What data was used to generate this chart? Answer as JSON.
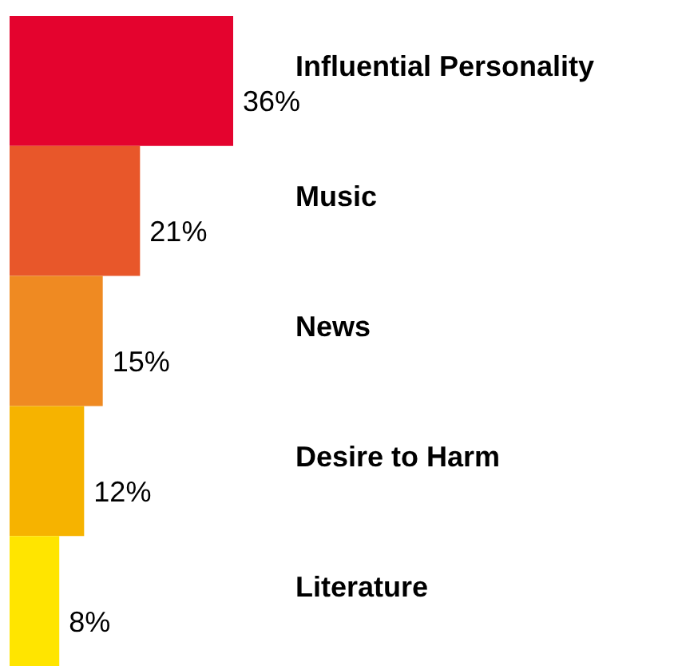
{
  "chart_data": {
    "type": "bar",
    "orientation": "horizontal",
    "categories": [
      "Influential Personality",
      "Music",
      "News",
      "Desire to Harm",
      "Literature"
    ],
    "values": [
      36,
      21,
      15,
      12,
      8
    ],
    "colors": [
      "#e4032e",
      "#e8572a",
      "#ef8a22",
      "#f6b300",
      "#ffe500"
    ],
    "value_labels": [
      "36%",
      "21%",
      "15%",
      "12%",
      "8%"
    ]
  }
}
